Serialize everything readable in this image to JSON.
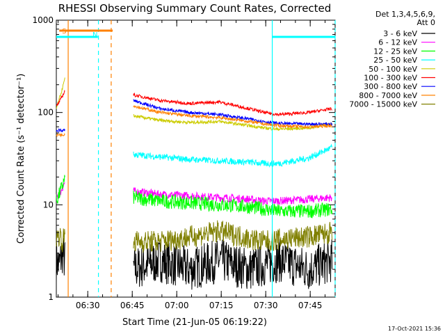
{
  "chart_data": {
    "type": "line",
    "title": "RHESSI Observing Summary Count Rates, Corrected",
    "xlabel": "Start Time (21-Jun-05 06:19:22)",
    "ylabel": "Corrected Count Rate (s⁻¹ detector⁻¹)",
    "x_units": "minutes after 06:19:22",
    "xlim": [
      0,
      94
    ],
    "ylim": [
      1,
      1000
    ],
    "yscale": "log",
    "x_ticks": [
      {
        "label": "06:30",
        "x": 10.6
      },
      {
        "label": "06:45",
        "x": 25.6
      },
      {
        "label": "07:00",
        "x": 40.6
      },
      {
        "label": "07:15",
        "x": 55.6
      },
      {
        "label": "07:30",
        "x": 70.6
      },
      {
        "label": "07:45",
        "x": 85.6
      }
    ],
    "y_ticks": [
      {
        "label": "1",
        "y": 1
      },
      {
        "label": "10",
        "y": 10
      },
      {
        "label": "100",
        "y": 100
      },
      {
        "label": "1000",
        "y": 1000
      }
    ],
    "legend": {
      "title_lines": [
        "Det 1,3,4,5,6,9,",
        "Att 0"
      ],
      "placement": "right"
    },
    "series": [
      {
        "name": "3 - 6 keV",
        "color": "#000000",
        "segments": [
          {
            "x": [
              0,
              1,
              2,
              3
            ],
            "y": [
              2.5,
              2.2,
              3.0,
              2.4
            ]
          },
          {
            "x": [
              26,
              35,
              45,
              55,
              65,
              75,
              85,
              93
            ],
            "y": [
              2.0,
              2.5,
              2.0,
              2.5,
              2.0,
              2.5,
              2.0,
              2.5
            ]
          }
        ]
      },
      {
        "name": "6 - 12 keV",
        "color": "#ff00ff",
        "segments": [
          {
            "x": [
              0,
              1,
              2,
              3
            ],
            "y": [
              12,
              13,
              15,
              18
            ]
          },
          {
            "x": [
              26,
              35,
              45,
              55,
              65,
              70,
              75,
              85,
              93
            ],
            "y": [
              14,
              13,
              12.5,
              12,
              11.5,
              11,
              11,
              11.5,
              12
            ]
          }
        ]
      },
      {
        "name": "12 - 25 keV",
        "color": "#00ff00",
        "segments": [
          {
            "x": [
              0,
              1,
              2,
              3
            ],
            "y": [
              11,
              13,
              16,
              20
            ]
          },
          {
            "x": [
              26,
              35,
              45,
              55,
              65,
              70,
              75,
              85,
              93
            ],
            "y": [
              12,
              11,
              10.5,
              10,
              9.5,
              9,
              8.5,
              8.5,
              9
            ]
          }
        ]
      },
      {
        "name": "25 - 50 keV",
        "color": "#00ffff",
        "segments": [
          {
            "x": [
              26,
              35,
              45,
              55,
              65,
              70,
              75,
              85,
              93
            ],
            "y": [
              35,
              33,
              31,
              30,
              29,
              28,
              28,
              32,
              42
            ]
          }
        ]
      },
      {
        "name": "50 - 100 keV",
        "color": "#cccc00",
        "segments": [
          {
            "x": [
              0,
              1,
              2,
              3
            ],
            "y": [
              110,
              140,
              180,
              240
            ]
          },
          {
            "x": [
              26,
              35,
              45,
              55,
              65,
              70,
              75,
              85,
              93
            ],
            "y": [
              92,
              82,
              78,
              80,
              72,
              68,
              66,
              68,
              76
            ]
          }
        ]
      },
      {
        "name": "100 - 300 keV",
        "color": "#ff0000",
        "segments": [
          {
            "x": [
              0,
              1,
              2,
              3
            ],
            "y": [
              115,
              130,
              150,
              175
            ]
          },
          {
            "x": [
              26,
              35,
              45,
              55,
              65,
              70,
              75,
              85,
              93
            ],
            "y": [
              155,
              135,
              125,
              130,
              110,
              100,
              95,
              100,
              110
            ]
          }
        ]
      },
      {
        "name": "300 - 800 keV",
        "color": "#0000ff",
        "segments": [
          {
            "x": [
              0,
              1,
              2,
              3
            ],
            "y": [
              62,
              65,
              63,
              65
            ]
          },
          {
            "x": [
              26,
              35,
              45,
              55,
              65,
              70,
              75,
              85,
              93
            ],
            "y": [
              135,
              110,
              100,
              95,
              85,
              80,
              76,
              75,
              75
            ]
          }
        ]
      },
      {
        "name": "800 - 7000 keV",
        "color": "#ff8000",
        "segments": [
          {
            "x": [
              0,
              1,
              2,
              3
            ],
            "y": [
              56,
              58,
              57,
              59
            ]
          },
          {
            "x": [
              26,
              35,
              45,
              55,
              65,
              70,
              75,
              85,
              93
            ],
            "y": [
              118,
              100,
              92,
              88,
              80,
              75,
              72,
              70,
              72
            ]
          }
        ]
      },
      {
        "name": "7000 - 15000 keV",
        "color": "#808000",
        "segments": [
          {
            "x": [
              0,
              1,
              2,
              3
            ],
            "y": [
              4.2,
              4.8,
              4.0,
              4.6
            ]
          },
          {
            "x": [
              26,
              35,
              45,
              55,
              65,
              70,
              75,
              85,
              93
            ],
            "y": [
              4.0,
              4.0,
              4.5,
              5.2,
              4.3,
              4.0,
              4.2,
              4.5,
              5.0
            ]
          }
        ]
      }
    ],
    "vertical_markers": [
      {
        "x": 4.0,
        "color": "#ff8000",
        "style": "solid"
      },
      {
        "x": 14.2,
        "color": "#00ffff",
        "style": "dashed"
      },
      {
        "x": 18.5,
        "color": "#ff8000",
        "style": "dashed"
      },
      {
        "x": 72.8,
        "color": "#00ffff",
        "style": "solid"
      },
      {
        "x": 94.0,
        "color": "#00ffff",
        "style": "dashed"
      }
    ],
    "flag_bars": [
      {
        "label": "S",
        "color": "#ff8000",
        "x_range": [
          1,
          19
        ],
        "y": 770
      },
      {
        "label": "N",
        "color": "#00ffff",
        "x_range": [
          0,
          14
        ],
        "y": 660
      },
      {
        "label": "",
        "color": "#00ffff",
        "x_range": [
          72.8,
          94
        ],
        "y": 660
      }
    ]
  },
  "footer": {
    "timestamp": "17-Oct-2021 15:36"
  }
}
